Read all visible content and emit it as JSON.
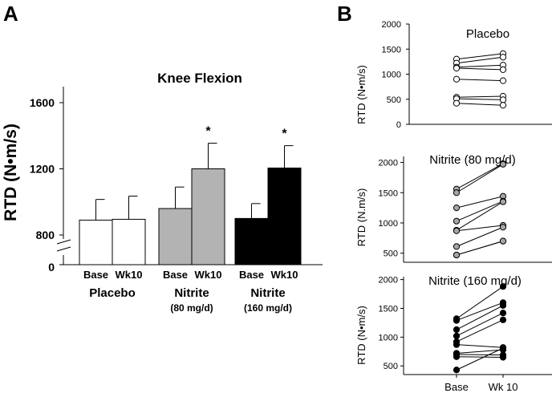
{
  "panels": {
    "a_letter": "A",
    "b_letter": "B"
  },
  "chart_data": [
    {
      "id": "A",
      "type": "bar",
      "title": "Knee Flexion",
      "ylabel": "RTD (N•m/s)",
      "ylim_shown": [
        800,
        1600
      ],
      "yticks": [
        800,
        1200,
        1600
      ],
      "axis_break": true,
      "y_zero_label": "0",
      "categories": [
        "Base",
        "Wk10",
        "Base",
        "Wk10",
        "Base",
        "Wk10"
      ],
      "groups": [
        {
          "label": "Placebo",
          "sublabel": "",
          "fill": "#ffffff"
        },
        {
          "label": "Nitrite",
          "sublabel": "(80 mg/d)",
          "fill": "#b3b3b3"
        },
        {
          "label": "Nitrite",
          "sublabel": "(160 mg/d)",
          "fill": "#000000"
        }
      ],
      "values": [
        890,
        895,
        960,
        1200,
        900,
        1205
      ],
      "error_upper": [
        1015,
        1035,
        1090,
        1355,
        990,
        1340
      ],
      "significance": [
        "",
        "",
        "",
        "*",
        "",
        "*"
      ]
    },
    {
      "id": "B1",
      "type": "line",
      "title": "Placebo",
      "ylabel": "RTD (N•m/s)",
      "ylim": [
        0,
        2000
      ],
      "yticks": [
        0,
        500,
        1000,
        1500,
        2000
      ],
      "x": [
        "Base",
        "Wk 10"
      ],
      "marker": "open",
      "subjects": [
        [
          1300,
          1410
        ],
        [
          1220,
          1340
        ],
        [
          1140,
          1180
        ],
        [
          1120,
          1090
        ],
        [
          900,
          870
        ],
        [
          540,
          560
        ],
        [
          510,
          490
        ],
        [
          420,
          380
        ]
      ]
    },
    {
      "id": "B2",
      "type": "line",
      "title": "Nitrite (80 mg/d)",
      "ylabel": "RTD (N.m/s)",
      "ylim": [
        350,
        2100
      ],
      "yticks": [
        500,
        1000,
        1500,
        2000
      ],
      "x": [
        "Base",
        "Wk 10"
      ],
      "marker": "gray",
      "subjects": [
        [
          1560,
          1980
        ],
        [
          1500,
          1970
        ],
        [
          1250,
          1440
        ],
        [
          1030,
          1360
        ],
        [
          880,
          1350
        ],
        [
          870,
          960
        ],
        [
          610,
          930
        ],
        [
          470,
          700
        ],
        [
          470,
          700
        ]
      ]
    },
    {
      "id": "B3",
      "type": "line",
      "title": "Nitrite (160 mg/d)",
      "ylabel": "RTD (N•m/s)",
      "ylim": [
        350,
        2050
      ],
      "yticks": [
        500,
        1000,
        1500,
        2000
      ],
      "x": [
        "Base",
        "Wk 10"
      ],
      "x_tick_labels": [
        "Base",
        "Wk 10"
      ],
      "marker": "filled",
      "subjects": [
        [
          1320,
          1880
        ],
        [
          1290,
          1600
        ],
        [
          1130,
          1550
        ],
        [
          1020,
          1420
        ],
        [
          920,
          1300
        ],
        [
          870,
          820
        ],
        [
          720,
          780
        ],
        [
          700,
          690
        ],
        [
          660,
          650
        ],
        [
          430,
          810
        ]
      ]
    }
  ]
}
